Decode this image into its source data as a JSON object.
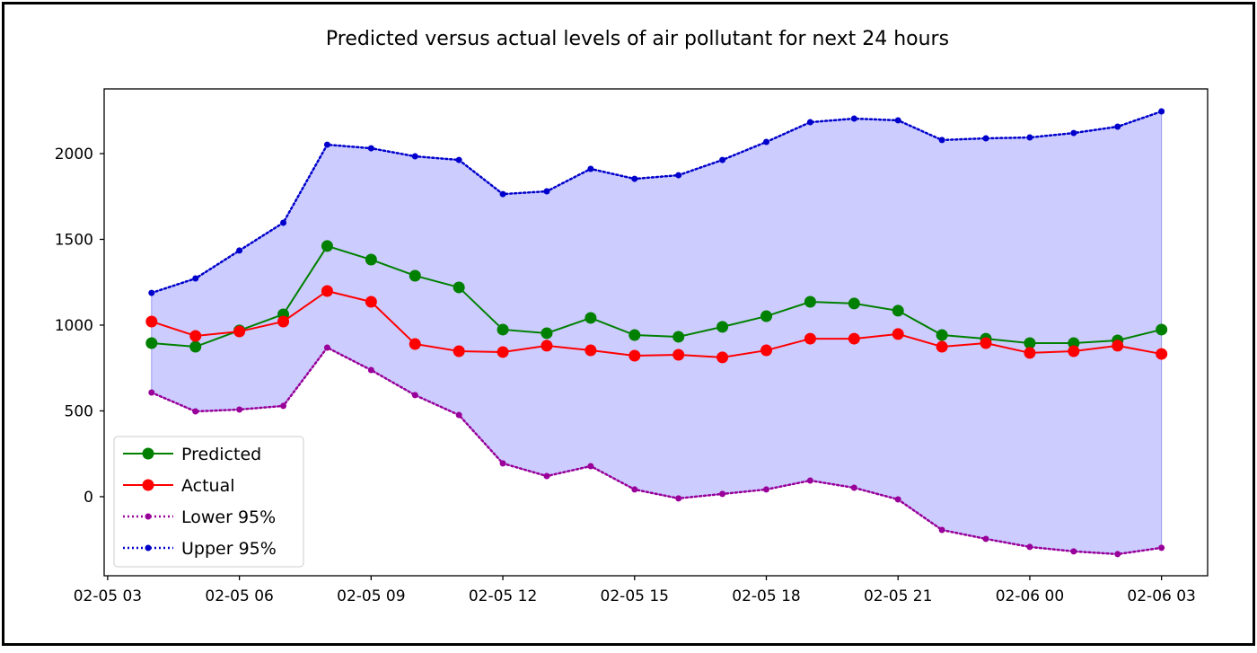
{
  "chart_data": {
    "type": "line",
    "title": "Predicted versus actual levels of air pollutant for next 24 hours",
    "xlabel": "",
    "ylabel": "",
    "x_unit": "hours since 02-05 00:00",
    "x": [
      4,
      5,
      6,
      7,
      8,
      9,
      10,
      11,
      12,
      13,
      14,
      15,
      16,
      17,
      18,
      19,
      20,
      21,
      22,
      23,
      24,
      25,
      26,
      27
    ],
    "xlim": [
      2.92,
      28.05
    ],
    "ylim": [
      -461,
      2377
    ],
    "xticks": [
      3,
      6,
      9,
      12,
      15,
      18,
      21,
      24,
      27
    ],
    "xtick_labels": [
      "02-05 03",
      "02-05 06",
      "02-05 09",
      "02-05 12",
      "02-05 15",
      "02-05 18",
      "02-05 21",
      "02-06 00",
      "02-06 03"
    ],
    "yticks": [
      0,
      500,
      1000,
      1500,
      2000
    ],
    "ytick_labels": [
      "0",
      "500",
      "1000",
      "1500",
      "2000"
    ],
    "grid": false,
    "legend_position": "lower-left",
    "fill_between": {
      "lower": "Lower 95%",
      "upper": "Upper 95%",
      "color": "#ccccff"
    },
    "series": [
      {
        "name": "Predicted",
        "color": "#008000",
        "style": "solid",
        "marker": "large",
        "values": [
          895,
          874,
          969,
          1063,
          1461,
          1382,
          1288,
          1220,
          974,
          953,
          1042,
          942,
          932,
          990,
          1052,
          1136,
          1126,
          1084,
          942,
          921,
          895,
          895,
          911,
          974
        ]
      },
      {
        "name": "Actual",
        "color": "#ff0000",
        "style": "solid",
        "marker": "large",
        "values": [
          1021,
          937,
          963,
          1021,
          1199,
          1136,
          890,
          848,
          843,
          880,
          853,
          822,
          827,
          812,
          853,
          921,
          921,
          948,
          874,
          895,
          838,
          848,
          880,
          832
        ]
      },
      {
        "name": "Lower 95%",
        "color": "#990099",
        "style": "dotted",
        "marker": "small",
        "values": [
          607,
          497,
          508,
          529,
          869,
          738,
          592,
          476,
          194,
          120,
          178,
          42,
          -10,
          16,
          42,
          94,
          52,
          -16,
          -194,
          -246,
          -293,
          -319,
          -335,
          -298
        ]
      },
      {
        "name": "Upper 95%",
        "color": "#0000cc",
        "style": "dotted",
        "marker": "small",
        "values": [
          1188,
          1272,
          1435,
          1597,
          2052,
          2031,
          1984,
          1963,
          1764,
          1780,
          1911,
          1853,
          1874,
          1963,
          2068,
          2183,
          2204,
          2194,
          2079,
          2089,
          2094,
          2120,
          2157,
          2246
        ]
      }
    ]
  }
}
